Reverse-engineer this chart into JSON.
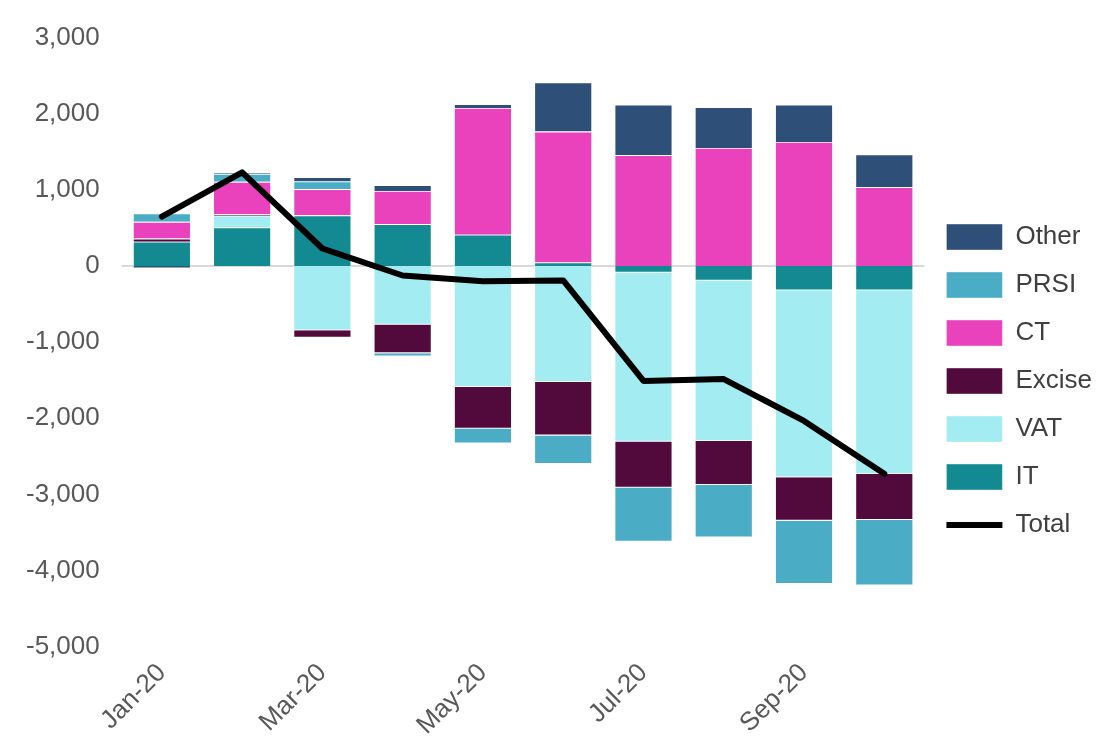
{
  "chart_data": {
    "type": "bar",
    "stacked": true,
    "categories": [
      "Jan-20",
      null,
      "Mar-20",
      null,
      "May-20",
      null,
      "Jul-20",
      null,
      "Sep-20",
      null
    ],
    "series": [
      {
        "name": "IT",
        "color": "#138a91",
        "values": [
          320,
          505,
          665,
          550,
          410,
          45,
          -85,
          -190,
          -320,
          -320
        ]
      },
      {
        "name": "VAT",
        "color": "#a2ecf2",
        "values": [
          null,
          155,
          -845,
          -770,
          -1590,
          -1525,
          -2220,
          -2110,
          -2455,
          -2410
        ]
      },
      {
        "name": "Excise",
        "color": "#520a3c",
        "values": [
          40,
          20,
          -95,
          -375,
          -545,
          -700,
          -605,
          -575,
          -570,
          -605
        ]
      },
      {
        "name": "CT",
        "color": "#e942bc",
        "values": [
          220,
          425,
          345,
          435,
          1665,
          1720,
          1455,
          1550,
          1630,
          1035
        ]
      },
      {
        "name": "PRSI",
        "color": "#4aacc5",
        "values": [
          110,
          105,
          100,
          -40,
          -195,
          -375,
          -710,
          -690,
          -830,
          -860
        ]
      },
      {
        "name": "Other",
        "color": "#2e4f78",
        "values": [
          -30,
          20,
          55,
          75,
          50,
          645,
          665,
          535,
          490,
          430
        ]
      },
      {
        "name": "Total",
        "type": "line",
        "color": "#000000",
        "values": [
          650,
          1230,
          230,
          -125,
          -200,
          -190,
          -1510,
          -1485,
          -2035,
          -2730
        ]
      }
    ],
    "ylim": [
      -5000,
      3000
    ],
    "yticks": [
      {
        "value": -5000,
        "label": "-5,000"
      },
      {
        "value": -4000,
        "label": "-4,000"
      },
      {
        "value": -3000,
        "label": "-3,000"
      },
      {
        "value": -2000,
        "label": "-2,000"
      },
      {
        "value": -1000,
        "label": "-1,000"
      },
      0,
      {
        "value": 1000,
        "label": "1,000"
      },
      {
        "value": 2000,
        "label": "2,000"
      },
      {
        "value": 3000,
        "label": "3,000"
      }
    ],
    "legend": "right",
    "marker": "none"
  }
}
